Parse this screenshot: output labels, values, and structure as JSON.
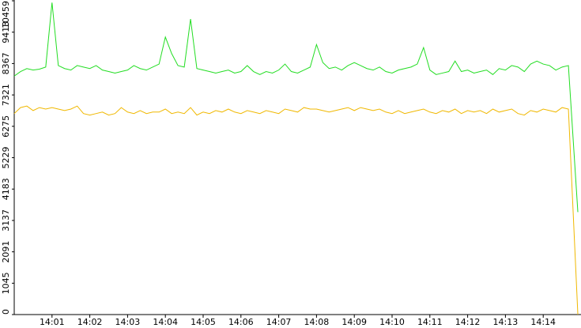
{
  "chart_data": {
    "type": "line",
    "x": [
      0,
      10,
      20,
      30,
      40,
      50,
      60,
      70,
      80,
      90,
      100,
      110,
      120,
      130,
      140,
      150,
      160,
      170,
      180,
      190,
      200,
      210,
      220,
      230,
      240,
      250,
      260,
      270,
      280,
      290,
      300,
      310,
      320,
      330,
      340,
      350,
      360,
      370,
      380,
      390,
      400,
      410,
      420,
      430,
      440,
      450,
      460,
      470,
      480,
      490,
      500,
      510,
      520,
      530,
      540,
      550,
      560,
      570,
      580,
      590,
      600,
      610,
      620,
      630,
      640,
      650,
      660,
      670,
      680,
      690,
      700,
      710,
      720,
      730,
      740,
      750,
      760,
      770,
      780,
      790,
      800,
      810,
      820,
      830,
      840,
      850,
      860,
      870,
      880,
      895
    ],
    "series": [
      {
        "color": "#22dd22",
        "values": [
          7950,
          8100,
          8200,
          8150,
          8180,
          8250,
          10400,
          8300,
          8200,
          8150,
          8300,
          8250,
          8200,
          8300,
          8150,
          8100,
          8050,
          8100,
          8150,
          8300,
          8200,
          8150,
          8250,
          8350,
          9250,
          8700,
          8300,
          8250,
          9850,
          8200,
          8150,
          8100,
          8050,
          8100,
          8150,
          8050,
          8100,
          8300,
          8100,
          8000,
          8100,
          8050,
          8150,
          8350,
          8100,
          8050,
          8150,
          8250,
          9000,
          8400,
          8200,
          8250,
          8150,
          8300,
          8400,
          8300,
          8200,
          8150,
          8250,
          8100,
          8050,
          8150,
          8200,
          8250,
          8350,
          8900,
          8150,
          8000,
          8050,
          8100,
          8450,
          8100,
          8150,
          8050,
          8100,
          8150,
          8000,
          8200,
          8150,
          8300,
          8250,
          8100,
          8350,
          8450,
          8350,
          8300,
          8150,
          8250,
          8300,
          3415
        ]
      },
      {
        "color": "#f0b800",
        "values": [
          6700,
          6900,
          6950,
          6800,
          6900,
          6850,
          6900,
          6850,
          6800,
          6850,
          6950,
          6700,
          6650,
          6700,
          6750,
          6650,
          6700,
          6900,
          6750,
          6700,
          6800,
          6700,
          6750,
          6750,
          6850,
          6700,
          6750,
          6700,
          6900,
          6650,
          6750,
          6700,
          6800,
          6750,
          6850,
          6750,
          6700,
          6800,
          6750,
          6700,
          6800,
          6750,
          6700,
          6850,
          6800,
          6750,
          6900,
          6850,
          6850,
          6800,
          6750,
          6800,
          6850,
          6900,
          6800,
          6900,
          6850,
          6800,
          6850,
          6750,
          6700,
          6800,
          6700,
          6750,
          6800,
          6850,
          6750,
          6700,
          6800,
          6750,
          6850,
          6700,
          6800,
          6750,
          6800,
          6700,
          6850,
          6750,
          6800,
          6850,
          6700,
          6650,
          6800,
          6750,
          6850,
          6800,
          6750,
          6900,
          6850,
          0
        ]
      }
    ],
    "xlim": [
      0,
      900
    ],
    "xticks": [
      {
        "value": 60,
        "label": "14:01"
      },
      {
        "value": 120,
        "label": "14:02"
      },
      {
        "value": 180,
        "label": "14:03"
      },
      {
        "value": 240,
        "label": "14:04"
      },
      {
        "value": 300,
        "label": "14:05"
      },
      {
        "value": 360,
        "label": "14:06"
      },
      {
        "value": 420,
        "label": "14:07"
      },
      {
        "value": 480,
        "label": "14:08"
      },
      {
        "value": 540,
        "label": "14:09"
      },
      {
        "value": 600,
        "label": "14:10"
      },
      {
        "value": 660,
        "label": "14:11"
      },
      {
        "value": 720,
        "label": "14:12"
      },
      {
        "value": 780,
        "label": "14:13"
      },
      {
        "value": 840,
        "label": "14:14"
      }
    ],
    "ylim": [
      0,
      10459
    ],
    "yticks": [
      0,
      1045,
      2091,
      3137,
      4183,
      5229,
      6275,
      7321,
      8367,
      9413,
      10459
    ]
  }
}
